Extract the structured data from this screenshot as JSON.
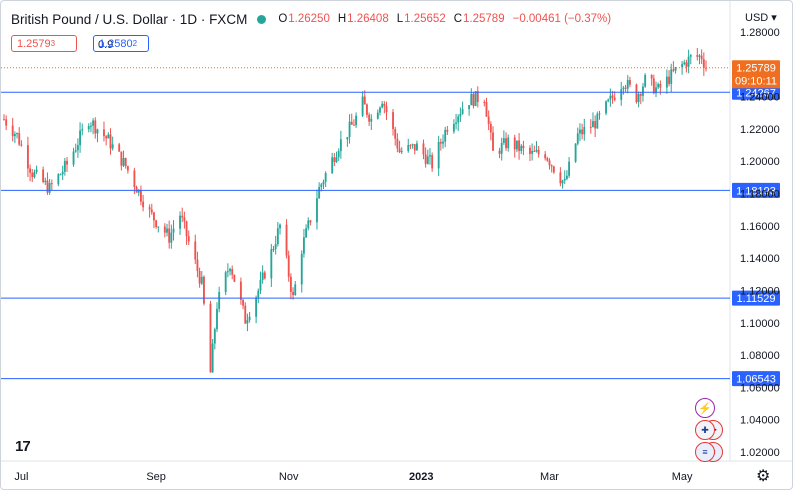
{
  "header": {
    "title": "British Pound / U.S. Dollar · 1D · FXCM",
    "open_label": "O",
    "open": "1.26250",
    "high_label": "H",
    "high": "1.26408",
    "low_label": "L",
    "low": "1.25652",
    "close_label": "C",
    "close": "1.25789",
    "change": "−0.00461 (−0.37%)"
  },
  "trade": {
    "sell": "1.2579",
    "sell_small": "3",
    "spread": "0.9",
    "buy": "1.2580",
    "buy_small": "2"
  },
  "currency_selector": "USD",
  "last_price": {
    "value": "1.25789",
    "countdown": "09:10:11"
  },
  "colors": {
    "up": "#26a69a",
    "down": "#ef5350",
    "hline": "#2962ff",
    "last_price_bg": "#f06e1f",
    "event_flash": "#9c27b0"
  },
  "icons": {
    "logo": "tradingview-logo-icon",
    "settings": "gear-icon",
    "event_flash": "lightning-icon",
    "event_uk": "uk-flag-icon",
    "event_us": "us-flag-icon"
  },
  "chart_data": {
    "type": "candlestick",
    "symbol": "GBPUSD",
    "timeframe": "1D",
    "ylim": [
      1.01,
      1.285
    ],
    "y_ticks": [
      "1.28000",
      "1.26000",
      "1.24000",
      "1.22000",
      "1.20000",
      "1.18000",
      "1.16000",
      "1.14000",
      "1.12000",
      "1.10000",
      "1.08000",
      "1.06000",
      "1.04000",
      "1.02000"
    ],
    "x_ticks": [
      "Jul",
      "Sep",
      "Nov",
      "2023",
      "Mar",
      "May"
    ],
    "x_range": [
      "2022-06-23",
      "2023-05-12"
    ],
    "horizontal_lines": [
      {
        "label": "1.24267",
        "value": 1.24267
      },
      {
        "label": "1.18193",
        "value": 1.18193
      },
      {
        "label": "1.11529",
        "value": 1.11529
      },
      {
        "label": "1.06543",
        "value": 1.06543
      }
    ],
    "last_price": 1.25789,
    "path_anchors": [
      [
        "2022-06-23",
        1.226
      ],
      [
        "2022-06-29",
        1.216
      ],
      [
        "2022-07-06",
        1.193
      ],
      [
        "2022-07-14",
        1.183
      ],
      [
        "2022-07-22",
        1.198
      ],
      [
        "2022-08-01",
        1.226
      ],
      [
        "2022-08-10",
        1.213
      ],
      [
        "2022-08-18",
        1.197
      ],
      [
        "2022-08-29",
        1.168
      ],
      [
        "2022-09-07",
        1.153
      ],
      [
        "2022-09-12",
        1.167
      ],
      [
        "2022-09-22",
        1.124
      ],
      [
        "2022-09-26",
        1.069
      ],
      [
        "2022-09-29",
        1.111
      ],
      [
        "2022-10-05",
        1.137
      ],
      [
        "2022-10-12",
        1.102
      ],
      [
        "2022-10-19",
        1.123
      ],
      [
        "2022-10-28",
        1.16
      ],
      [
        "2022-11-03",
        1.115
      ],
      [
        "2022-11-07",
        1.146
      ],
      [
        "2022-11-15",
        1.183
      ],
      [
        "2022-11-24",
        1.21
      ],
      [
        "2022-12-01",
        1.224
      ],
      [
        "2022-12-05",
        1.236
      ],
      [
        "2022-12-09",
        1.226
      ],
      [
        "2022-12-14",
        1.239
      ],
      [
        "2022-12-22",
        1.206
      ],
      [
        "2022-12-30",
        1.209
      ],
      [
        "2023-01-06",
        1.198
      ],
      [
        "2023-01-13",
        1.222
      ],
      [
        "2023-01-23",
        1.238
      ],
      [
        "2023-01-30",
        1.24
      ],
      [
        "2023-02-03",
        1.205
      ],
      [
        "2023-02-10",
        1.212
      ],
      [
        "2023-02-20",
        1.204
      ],
      [
        "2023-02-27",
        1.205
      ],
      [
        "2023-03-03",
        1.196
      ],
      [
        "2023-03-08",
        1.186
      ],
      [
        "2023-03-14",
        1.216
      ],
      [
        "2023-03-23",
        1.225
      ],
      [
        "2023-04-04",
        1.25
      ],
      [
        "2023-04-10",
        1.24
      ],
      [
        "2023-04-14",
        1.25
      ],
      [
        "2023-04-20",
        1.244
      ],
      [
        "2023-04-28",
        1.256
      ],
      [
        "2023-05-05",
        1.264
      ],
      [
        "2023-05-10",
        1.265
      ],
      [
        "2023-05-12",
        1.258
      ]
    ]
  }
}
